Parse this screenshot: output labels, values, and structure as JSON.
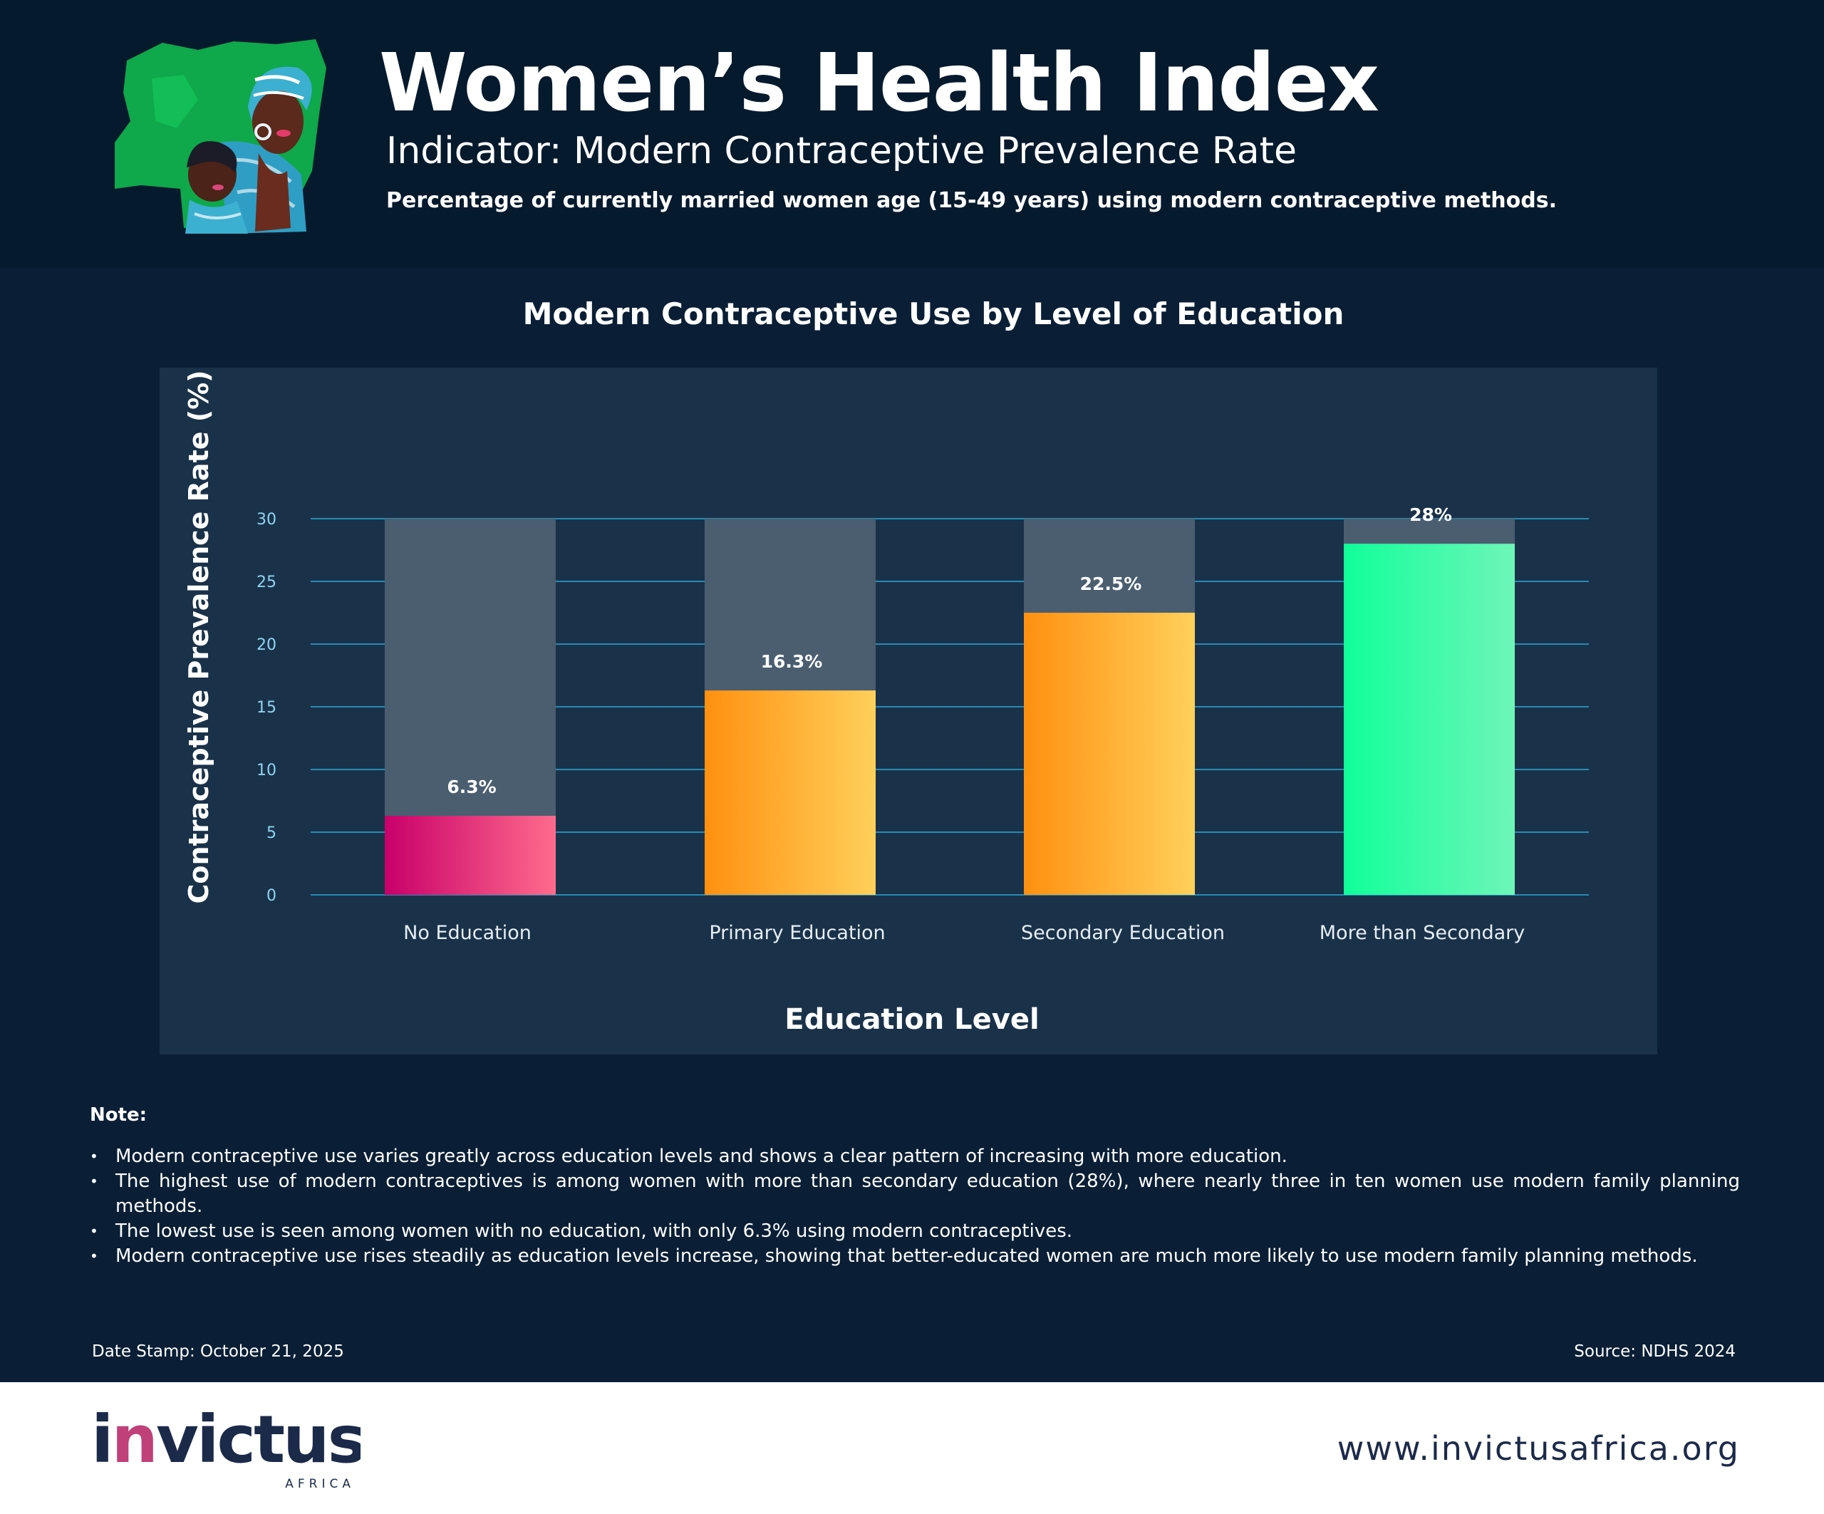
{
  "header": {
    "title": "Women’s Health Index",
    "indicator": "Indicator: Modern Contraceptive Prevalence Rate",
    "definition": "Percentage of currently married women age (15-49 years) using modern contraceptive methods.",
    "illustration_icon": "nigeria-map-mother-child-illustration"
  },
  "chart_title": "Modern Contraceptive Use by Level of Education",
  "chart_data": {
    "type": "bar",
    "title": "Modern Contraceptive Use by Level of Education",
    "xlabel": "Education Level",
    "ylabel": "Contraceptive Prevalence Rate (%)",
    "categories": [
      "No Education",
      "Primary Education",
      "Secondary Education",
      "More than Secondary"
    ],
    "values": [
      6.3,
      16.3,
      22.5,
      28
    ],
    "value_labels": [
      "6.3%",
      "16.3%",
      "22.5%",
      "28%"
    ],
    "ylim": [
      0,
      30
    ],
    "yticks": [
      0,
      5,
      10,
      15,
      20,
      25,
      30
    ],
    "ytick_labels": [
      "0",
      "5",
      "10",
      "15",
      "20",
      "25",
      "30"
    ],
    "grid": true,
    "background_track_max": 30,
    "bar_gradients": [
      [
        "#c8006a",
        "#ff6b8c"
      ],
      [
        "#ff9010",
        "#ffd05a"
      ],
      [
        "#ff9010",
        "#ffd05a"
      ],
      [
        "#10ff9a",
        "#6ef5b8"
      ]
    ],
    "track_color": "#4a5e70",
    "grid_color": "#2aa8d8",
    "tick_color": "#8ed4f0"
  },
  "note": {
    "heading": "Note:",
    "items": [
      "Modern contraceptive use varies greatly across education levels and shows a clear pattern of increasing with more education.",
      "The highest use of modern contraceptives is among women with more than secondary education (28%), where nearly three in ten women use modern family planning methods.",
      "The lowest use is seen among women with no education, with only 6.3% using modern contraceptives.",
      "Modern contraceptive use rises steadily as education levels increase, showing that better-educated women are much more likely to use modern family planning methods."
    ]
  },
  "date_stamp": "Date Stamp: October 21, 2025",
  "source": "Source: NDHS 2024",
  "footer": {
    "brand_name": "invictus",
    "brand_sub": "AFRICA",
    "website": "www.invictusafrica.org",
    "brand_color": "#1c2a4a",
    "brand_accent": "#c0407a"
  }
}
